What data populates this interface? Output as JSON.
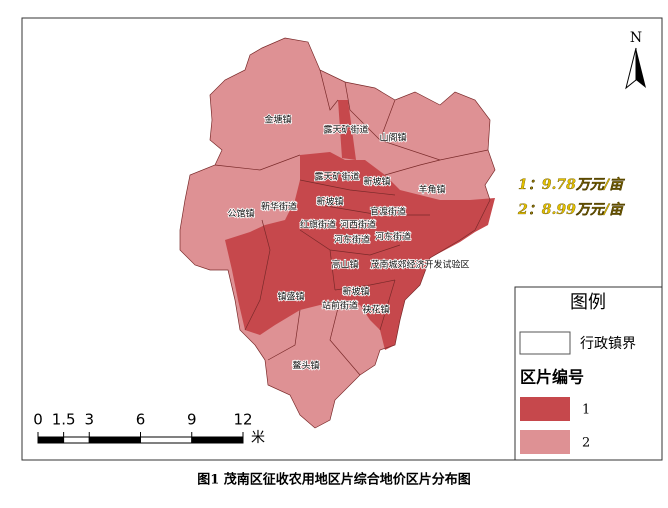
{
  "north": "N",
  "labels": [
    "金塘镇",
    "露天矿街道",
    "山阁镇",
    "露天矿街道",
    "新坡镇",
    "羊角镇",
    "新华街道",
    "新坡镇",
    "公馆镇",
    "官渡街道",
    "红旗街道",
    "河西街道",
    "河东街道",
    "河东街道",
    "高山镇",
    "茂南城郊经济开发试验区",
    "镇盛镇",
    "新坡镇",
    "站前街道",
    "袂花镇",
    "鳌头镇"
  ],
  "prices": [
    "1：9.78万元/亩",
    "2：8.99万元/亩"
  ],
  "legend": {
    "title": "图例",
    "boundary": "行政镇界",
    "zone_title": "区片编号",
    "zones": [
      "1",
      "2"
    ]
  },
  "scale": {
    "ticks": [
      0,
      1.5,
      3,
      6,
      9,
      12
    ],
    "unit": "米"
  },
  "caption": "图1 茂南区征收农用地区片综合地价区片分布图"
}
